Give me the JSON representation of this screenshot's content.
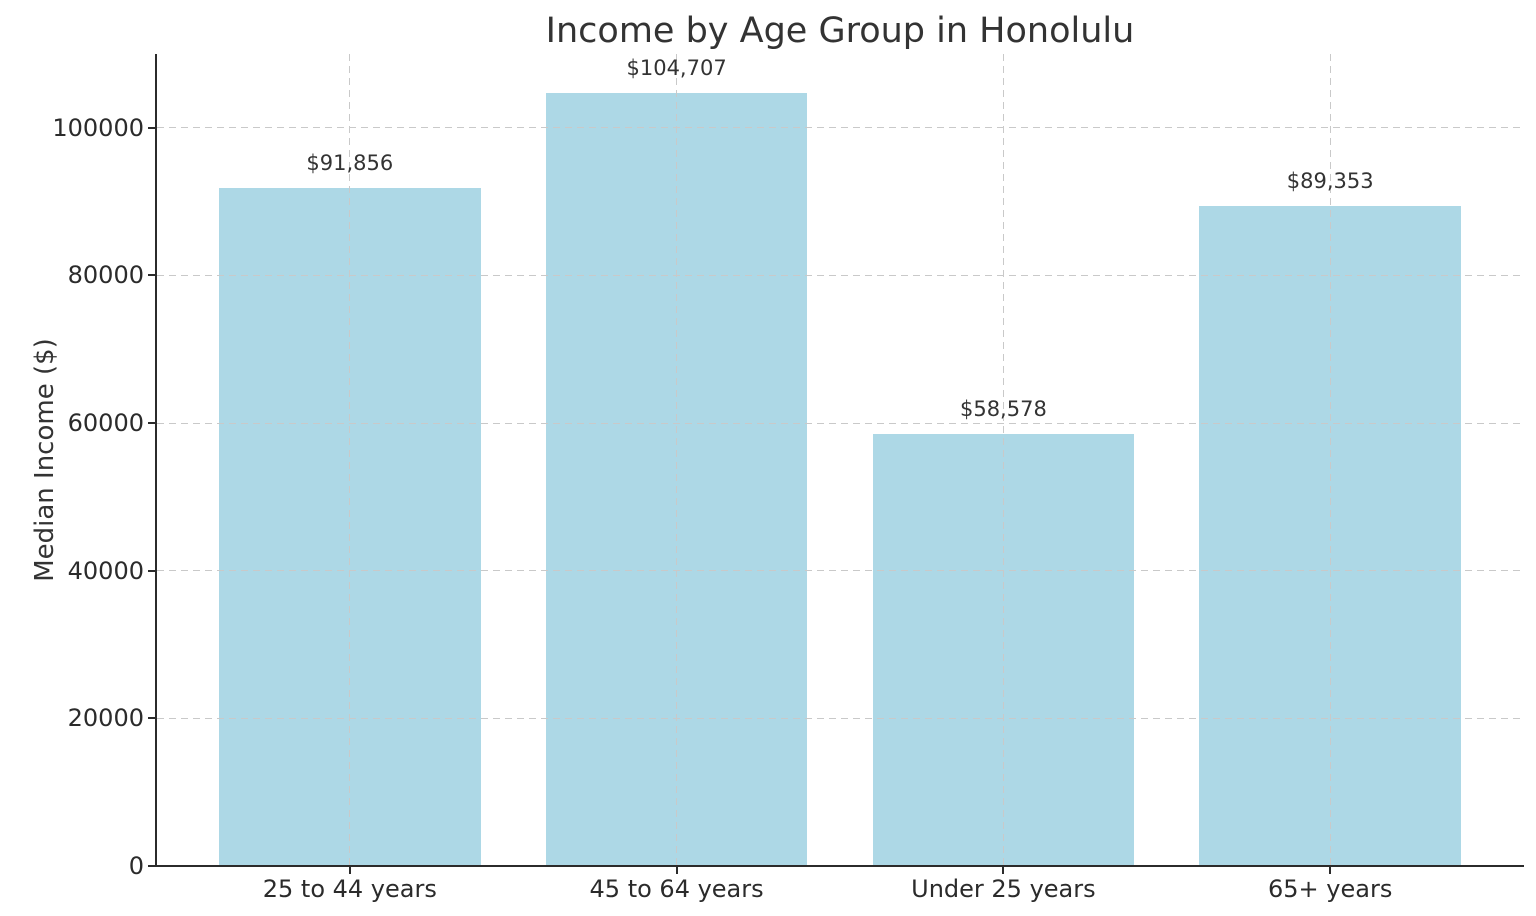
{
  "chart_data": {
    "type": "bar",
    "title": "Income by Age Group in Honolulu",
    "xlabel": "",
    "ylabel": "Median Income ($)",
    "categories": [
      "25 to 44 years",
      "45 to 64 years",
      "Under 25 years",
      "65+ years"
    ],
    "values": [
      91856,
      104707,
      58578,
      89353
    ],
    "value_labels": [
      "$91,856",
      "$104,707",
      "$58,578",
      "$89,353"
    ],
    "y_ticks": [
      0,
      20000,
      40000,
      60000,
      80000,
      100000
    ],
    "y_tick_labels": [
      "0",
      "20000",
      "40000",
      "60000",
      "80000",
      "100000"
    ],
    "ylim": [
      0,
      110000
    ],
    "bar_width_fraction": 0.8,
    "grid": "dashed, horizontal and vertical, drawn above bars",
    "legend_position": "none",
    "colors": {
      "bar": "#ADD8E6",
      "grid": "#c9c9c9",
      "axis": "#2b2b2b",
      "text": "#333333",
      "background": "#ffffff"
    }
  }
}
